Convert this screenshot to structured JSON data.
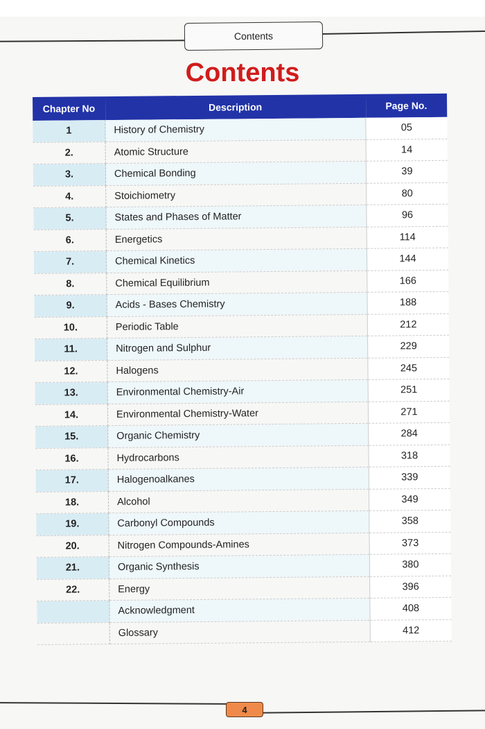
{
  "header": {
    "running_title": "Contents"
  },
  "title": "Contents",
  "table": {
    "columns": [
      "Chapter No",
      "Description",
      "Page No."
    ],
    "rows": [
      {
        "chapter": "1",
        "description": "History of Chemistry",
        "page": "05"
      },
      {
        "chapter": "2.",
        "description": "Atomic Structure",
        "page": "14"
      },
      {
        "chapter": "3.",
        "description": "Chemical Bonding",
        "page": "39"
      },
      {
        "chapter": "4.",
        "description": "Stoichiometry",
        "page": "80"
      },
      {
        "chapter": "5.",
        "description": "States and Phases of Matter",
        "page": "96"
      },
      {
        "chapter": "6.",
        "description": "Energetics",
        "page": "114"
      },
      {
        "chapter": "7.",
        "description": "Chemical Kinetics",
        "page": "144"
      },
      {
        "chapter": "8.",
        "description": "Chemical Equilibrium",
        "page": "166"
      },
      {
        "chapter": "9.",
        "description": "Acids - Bases Chemistry",
        "page": "188"
      },
      {
        "chapter": "10.",
        "description": "Periodic Table",
        "page": "212"
      },
      {
        "chapter": "11.",
        "description": "Nitrogen and Sulphur",
        "page": "229"
      },
      {
        "chapter": "12.",
        "description": "Halogens",
        "page": "245"
      },
      {
        "chapter": "13.",
        "description": "Environmental Chemistry-Air",
        "page": "251"
      },
      {
        "chapter": "14.",
        "description": "Environmental Chemistry-Water",
        "page": "271"
      },
      {
        "chapter": "15.",
        "description": "Organic Chemistry",
        "page": "284"
      },
      {
        "chapter": "16.",
        "description": "Hydrocarbons",
        "page": "318"
      },
      {
        "chapter": "17.",
        "description": "Halogenoalkanes",
        "page": "339"
      },
      {
        "chapter": "18.",
        "description": "Alcohol",
        "page": "349"
      },
      {
        "chapter": "19.",
        "description": "Carbonyl Compounds",
        "page": "358"
      },
      {
        "chapter": "20.",
        "description": "Nitrogen Compounds-Amines",
        "page": "373"
      },
      {
        "chapter": "21.",
        "description": "Organic Synthesis",
        "page": "380"
      },
      {
        "chapter": "22.",
        "description": "Energy",
        "page": "396"
      },
      {
        "chapter": "",
        "description": "Acknowledgment",
        "page": "408"
      },
      {
        "chapter": "",
        "description": "Glossary",
        "page": "412"
      }
    ]
  },
  "footer": {
    "page_number": "4"
  },
  "colors": {
    "title": "#d01c1c",
    "header_bg": "#2233a8",
    "row_tint": "#d8ecf4",
    "page_badge": "#f08a4a"
  }
}
